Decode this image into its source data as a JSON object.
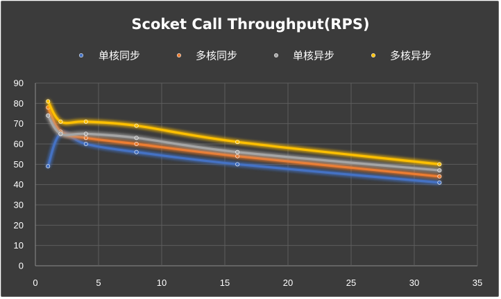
{
  "chart_data": {
    "type": "line",
    "title": "Scoket Call Throughput(RPS)",
    "xlabel": "",
    "ylabel": "",
    "xlim": [
      0,
      35
    ],
    "ylim": [
      0,
      90
    ],
    "xticks": [
      0,
      5,
      10,
      15,
      20,
      25,
      30,
      35
    ],
    "yticks": [
      0,
      10,
      20,
      30,
      40,
      50,
      60,
      70,
      80,
      90
    ],
    "grid": true,
    "legend_position": "top",
    "x": [
      1,
      2,
      4,
      8,
      16,
      32
    ],
    "series": [
      {
        "name": "单核同步",
        "color": "#4472c4",
        "values": [
          49,
          65,
          60,
          56,
          50,
          41
        ]
      },
      {
        "name": "多核同步",
        "color": "#ed7d31",
        "values": [
          78,
          66,
          63,
          60,
          54,
          44
        ]
      },
      {
        "name": "单核异步",
        "color": "#a5a5a5",
        "values": [
          74,
          65,
          65,
          63,
          56,
          47
        ]
      },
      {
        "name": "多核异步",
        "color": "#ffc000",
        "values": [
          81,
          71,
          71,
          69,
          61,
          50
        ]
      }
    ]
  }
}
